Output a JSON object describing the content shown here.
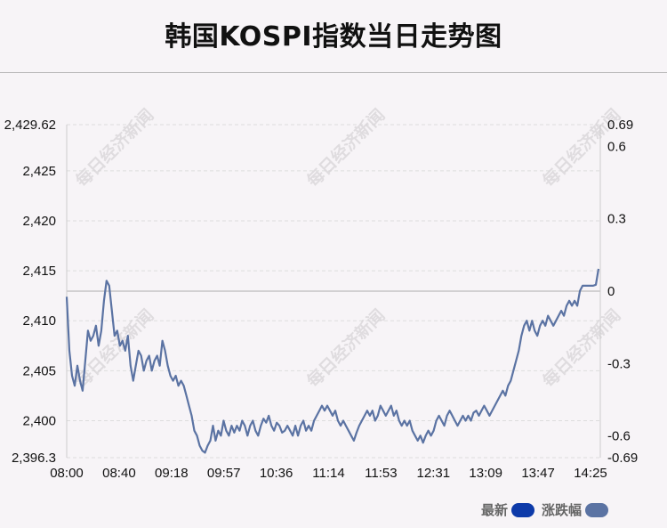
{
  "title": "韩国KOSPI指数当日走势图",
  "watermark": "每日经济新闻",
  "legend": [
    {
      "label": "最新",
      "color": "#0d3aa9"
    },
    {
      "label": "涨跌幅",
      "color": "#5b73a3"
    }
  ],
  "chart_data": {
    "type": "line",
    "title": "韩国KOSPI指数当日走势图",
    "xlabel": "",
    "ylabel": "",
    "x_ticks": [
      "08:00",
      "08:40",
      "09:18",
      "09:57",
      "10:36",
      "11:14",
      "11:53",
      "12:31",
      "13:09",
      "13:47",
      "14:25"
    ],
    "y_left_ticks": [
      2429.62,
      2425,
      2420,
      2415,
      2410,
      2405,
      2400,
      2396.3
    ],
    "y_left_tick_labels": [
      "2,429.62",
      "2,425",
      "2,420",
      "2,415",
      "2,410",
      "2,405",
      "2,400",
      "2,396.3"
    ],
    "y_right_ticks": [
      0.69,
      0.6,
      0.3,
      0,
      -0.3,
      -0.6,
      -0.69
    ],
    "y_right_tick_labels": [
      "0.69",
      "0.6",
      "0.3",
      "0",
      "-0.3",
      "-0.6",
      "-0.69"
    ],
    "ylim": [
      2396.3,
      2429.62
    ],
    "y2lim": [
      -0.69,
      0.69
    ],
    "baseline": 2412.96,
    "grid": true,
    "legend_position": "bottom-right",
    "series": [
      {
        "name": "最新",
        "color": "#5b73a3",
        "points": [
          [
            0,
            2412.4
          ],
          [
            1,
            2407.0
          ],
          [
            2,
            2404.5
          ],
          [
            3,
            2403.5
          ],
          [
            4,
            2405.5
          ],
          [
            5,
            2404.0
          ],
          [
            6,
            2403.0
          ],
          [
            7,
            2406.0
          ],
          [
            8,
            2409.0
          ],
          [
            9,
            2408.0
          ],
          [
            10,
            2408.5
          ],
          [
            11,
            2409.5
          ],
          [
            12,
            2407.5
          ],
          [
            13,
            2409.0
          ],
          [
            14,
            2412.0
          ],
          [
            15,
            2414.0
          ],
          [
            16,
            2413.5
          ],
          [
            17,
            2411.0
          ],
          [
            18,
            2408.5
          ],
          [
            19,
            2409.0
          ],
          [
            20,
            2407.5
          ],
          [
            21,
            2408.0
          ],
          [
            22,
            2407.0
          ],
          [
            23,
            2408.5
          ],
          [
            24,
            2405.5
          ],
          [
            25,
            2404.0
          ],
          [
            26,
            2405.5
          ],
          [
            27,
            2407.0
          ],
          [
            28,
            2406.5
          ],
          [
            29,
            2405.0
          ],
          [
            30,
            2406.0
          ],
          [
            31,
            2406.5
          ],
          [
            32,
            2405.0
          ],
          [
            33,
            2406.0
          ],
          [
            34,
            2406.5
          ],
          [
            35,
            2405.5
          ],
          [
            36,
            2408.0
          ],
          [
            37,
            2407.0
          ],
          [
            38,
            2405.5
          ],
          [
            39,
            2404.5
          ],
          [
            40,
            2404.0
          ],
          [
            41,
            2404.5
          ],
          [
            42,
            2403.5
          ],
          [
            43,
            2404.0
          ],
          [
            44,
            2403.5
          ],
          [
            45,
            2402.5
          ],
          [
            46,
            2401.5
          ],
          [
            47,
            2400.5
          ],
          [
            48,
            2399.0
          ],
          [
            49,
            2398.5
          ],
          [
            50,
            2397.5
          ],
          [
            51,
            2397.0
          ],
          [
            52,
            2396.8
          ],
          [
            53,
            2397.5
          ],
          [
            54,
            2398.0
          ],
          [
            55,
            2399.5
          ],
          [
            56,
            2398.0
          ],
          [
            57,
            2399.0
          ],
          [
            58,
            2398.5
          ],
          [
            59,
            2400.0
          ],
          [
            60,
            2399.0
          ],
          [
            61,
            2398.5
          ],
          [
            62,
            2399.5
          ],
          [
            63,
            2398.8
          ],
          [
            64,
            2399.5
          ],
          [
            65,
            2399.0
          ],
          [
            66,
            2400.0
          ],
          [
            67,
            2399.5
          ],
          [
            68,
            2398.5
          ],
          [
            69,
            2399.5
          ],
          [
            70,
            2400.0
          ],
          [
            71,
            2399.0
          ],
          [
            72,
            2398.5
          ],
          [
            73,
            2399.5
          ],
          [
            74,
            2400.2
          ],
          [
            75,
            2399.8
          ],
          [
            76,
            2400.5
          ],
          [
            77,
            2399.5
          ],
          [
            78,
            2399.0
          ],
          [
            79,
            2399.8
          ],
          [
            80,
            2399.5
          ],
          [
            81,
            2398.8
          ],
          [
            82,
            2399.0
          ],
          [
            83,
            2399.5
          ],
          [
            84,
            2399.0
          ],
          [
            85,
            2398.5
          ],
          [
            86,
            2399.5
          ],
          [
            87,
            2398.5
          ],
          [
            88,
            2399.5
          ],
          [
            89,
            2400.0
          ],
          [
            90,
            2399.0
          ],
          [
            91,
            2399.5
          ],
          [
            92,
            2399.0
          ],
          [
            93,
            2400.0
          ],
          [
            94,
            2400.5
          ],
          [
            95,
            2401.0
          ],
          [
            96,
            2401.5
          ],
          [
            97,
            2401.0
          ],
          [
            98,
            2401.5
          ],
          [
            99,
            2401.0
          ],
          [
            100,
            2400.5
          ],
          [
            101,
            2401.0
          ],
          [
            102,
            2400.0
          ],
          [
            103,
            2399.5
          ],
          [
            104,
            2400.0
          ],
          [
            105,
            2399.5
          ],
          [
            106,
            2399.0
          ],
          [
            107,
            2398.5
          ],
          [
            108,
            2398.0
          ],
          [
            109,
            2398.8
          ],
          [
            110,
            2399.5
          ],
          [
            111,
            2400.0
          ],
          [
            112,
            2400.5
          ],
          [
            113,
            2401.0
          ],
          [
            114,
            2400.5
          ],
          [
            115,
            2401.0
          ],
          [
            116,
            2400.0
          ],
          [
            117,
            2400.5
          ],
          [
            118,
            2401.5
          ],
          [
            119,
            2401.0
          ],
          [
            120,
            2400.5
          ],
          [
            121,
            2401.0
          ],
          [
            122,
            2401.5
          ],
          [
            123,
            2400.5
          ],
          [
            124,
            2401.0
          ],
          [
            125,
            2400.0
          ],
          [
            126,
            2399.5
          ],
          [
            127,
            2400.0
          ],
          [
            128,
            2399.5
          ],
          [
            129,
            2400.0
          ],
          [
            130,
            2399.0
          ],
          [
            131,
            2398.5
          ],
          [
            132,
            2398.0
          ],
          [
            133,
            2398.5
          ],
          [
            134,
            2397.8
          ],
          [
            135,
            2398.5
          ],
          [
            136,
            2399.0
          ],
          [
            137,
            2398.5
          ],
          [
            138,
            2399.0
          ],
          [
            139,
            2400.0
          ],
          [
            140,
            2400.5
          ],
          [
            141,
            2400.0
          ],
          [
            142,
            2399.5
          ],
          [
            143,
            2400.5
          ],
          [
            144,
            2401.0
          ],
          [
            145,
            2400.5
          ],
          [
            146,
            2400.0
          ],
          [
            147,
            2399.5
          ],
          [
            148,
            2400.0
          ],
          [
            149,
            2400.5
          ],
          [
            150,
            2400.0
          ],
          [
            151,
            2400.5
          ],
          [
            152,
            2400.0
          ],
          [
            153,
            2400.8
          ],
          [
            154,
            2401.0
          ],
          [
            155,
            2400.5
          ],
          [
            156,
            2401.0
          ],
          [
            157,
            2401.5
          ],
          [
            158,
            2401.0
          ],
          [
            159,
            2400.5
          ],
          [
            160,
            2401.0
          ],
          [
            161,
            2401.5
          ],
          [
            162,
            2402.0
          ],
          [
            163,
            2402.5
          ],
          [
            164,
            2403.0
          ],
          [
            165,
            2402.5
          ],
          [
            166,
            2403.5
          ],
          [
            167,
            2404.0
          ],
          [
            168,
            2405.0
          ],
          [
            169,
            2406.0
          ],
          [
            170,
            2407.0
          ],
          [
            171,
            2408.5
          ],
          [
            172,
            2409.5
          ],
          [
            173,
            2410.0
          ],
          [
            174,
            2409.0
          ],
          [
            175,
            2410.0
          ],
          [
            176,
            2409.0
          ],
          [
            177,
            2408.5
          ],
          [
            178,
            2409.5
          ],
          [
            179,
            2410.0
          ],
          [
            180,
            2409.5
          ],
          [
            181,
            2410.5
          ],
          [
            182,
            2410.0
          ],
          [
            183,
            2409.5
          ],
          [
            184,
            2410.0
          ],
          [
            185,
            2410.5
          ],
          [
            186,
            2411.0
          ],
          [
            187,
            2410.5
          ],
          [
            188,
            2411.5
          ],
          [
            189,
            2412.0
          ],
          [
            190,
            2411.5
          ],
          [
            191,
            2412.0
          ],
          [
            192,
            2411.5
          ],
          [
            193,
            2413.0
          ],
          [
            194,
            2413.5
          ],
          [
            195,
            2413.5
          ],
          [
            196,
            2413.5
          ],
          [
            197,
            2413.5
          ],
          [
            198,
            2413.5
          ],
          [
            199,
            2413.6
          ],
          [
            200,
            2415.2
          ]
        ]
      }
    ]
  }
}
